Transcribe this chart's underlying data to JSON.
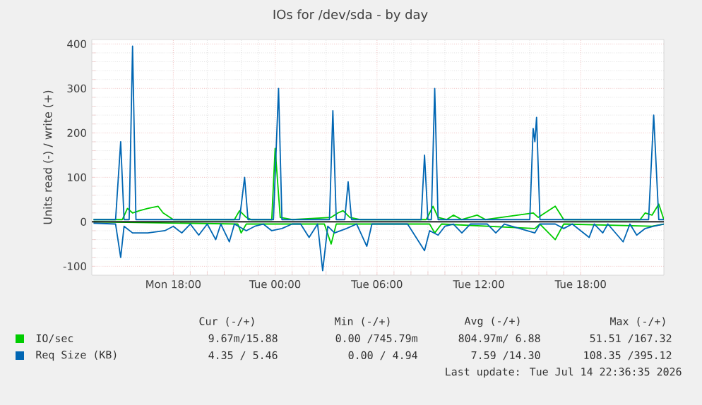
{
  "chart_data": {
    "type": "line",
    "title": "IOs for /dev/sda - by day",
    "ylabel": "Units read (-) / write (+)",
    "xlim": [
      "2026-07-13T13:12",
      "2026-07-14T22:54"
    ],
    "xticks": [
      {
        "value": "2026-07-13T18:00",
        "label": "Mon 18:00"
      },
      {
        "value": "2026-07-14T00:00",
        "label": "Tue 00:00"
      },
      {
        "value": "2026-07-14T06:00",
        "label": "Tue 06:00"
      },
      {
        "value": "2026-07-14T12:00",
        "label": "Tue 12:00"
      },
      {
        "value": "2026-07-14T18:00",
        "label": "Tue 18:00"
      }
    ],
    "ylim": [
      -120,
      410
    ],
    "yticks": [
      -100,
      0,
      100,
      200,
      300,
      400
    ],
    "grid": true,
    "legend": "bottom",
    "ref_lines": [
      {
        "axis": "y",
        "value": 0,
        "color": "#000000"
      }
    ],
    "series": [
      {
        "name": "IO/sec",
        "color": "#00cc00",
        "x": [
          "2026-07-13T13:18",
          "2026-07-13T15:00",
          "2026-07-13T15:18",
          "2026-07-13T15:36",
          "2026-07-13T16:00",
          "2026-07-13T16:30",
          "2026-07-13T17:06",
          "2026-07-13T17:24",
          "2026-07-13T18:00",
          "2026-07-13T21:36",
          "2026-07-13T21:54",
          "2026-07-13T22:18",
          "2026-07-13T22:36",
          "2026-07-13T23:48",
          "2026-07-14T00:00",
          "2026-07-14T00:18",
          "2026-07-14T01:00",
          "2026-07-14T03:18",
          "2026-07-14T03:42",
          "2026-07-14T04:00",
          "2026-07-14T04:24",
          "2026-07-14T05:00",
          "2026-07-14T08:54",
          "2026-07-14T09:18",
          "2026-07-14T09:36",
          "2026-07-14T10:06",
          "2026-07-14T10:30",
          "2026-07-14T11:00",
          "2026-07-14T11:54",
          "2026-07-14T12:24",
          "2026-07-14T15:12",
          "2026-07-14T15:30",
          "2026-07-14T16:30",
          "2026-07-14T17:00",
          "2026-07-14T21:30",
          "2026-07-14T21:48",
          "2026-07-14T22:12",
          "2026-07-14T22:36",
          "2026-07-14T22:54"
        ],
        "values": [
          5,
          5,
          30,
          20,
          25,
          30,
          35,
          20,
          5,
          5,
          25,
          10,
          5,
          5,
          165,
          10,
          5,
          10,
          20,
          25,
          10,
          5,
          5,
          35,
          10,
          5,
          15,
          5,
          15,
          5,
          20,
          10,
          35,
          5,
          5,
          20,
          15,
          40,
          5
        ]
      },
      {
        "color": "#00cc00",
        "x": [
          "2026-07-13T13:18",
          "2026-07-13T21:48",
          "2026-07-13T22:00",
          "2026-07-13T22:18",
          "2026-07-14T02:54",
          "2026-07-14T03:18",
          "2026-07-14T03:36",
          "2026-07-14T09:06",
          "2026-07-14T09:24",
          "2026-07-14T09:48",
          "2026-07-14T15:18",
          "2026-07-14T15:36",
          "2026-07-14T16:30",
          "2026-07-14T17:00",
          "2026-07-14T22:12",
          "2026-07-14T22:54"
        ],
        "values": [
          0,
          -5,
          -25,
          -5,
          -5,
          -50,
          -5,
          -5,
          -25,
          -5,
          -15,
          -5,
          -40,
          -5,
          -10,
          -5
        ]
      },
      {
        "name": "Req Size (KB)",
        "color": "#0066b3",
        "x": [
          "2026-07-13T13:18",
          "2026-07-13T14:36",
          "2026-07-13T14:54",
          "2026-07-13T15:06",
          "2026-07-13T15:24",
          "2026-07-13T15:36",
          "2026-07-13T15:48",
          "2026-07-13T17:00",
          "2026-07-13T20:00",
          "2026-07-13T21:54",
          "2026-07-13T22:12",
          "2026-07-13T22:24",
          "2026-07-13T23:54",
          "2026-07-14T00:12",
          "2026-07-14T00:24",
          "2026-07-14T03:12",
          "2026-07-14T03:24",
          "2026-07-14T03:36",
          "2026-07-14T04:06",
          "2026-07-14T04:18",
          "2026-07-14T04:30",
          "2026-07-14T08:36",
          "2026-07-14T08:48",
          "2026-07-14T09:00",
          "2026-07-14T09:12",
          "2026-07-14T09:24",
          "2026-07-14T09:36",
          "2026-07-14T15:00",
          "2026-07-14T15:12",
          "2026-07-14T15:18",
          "2026-07-14T15:24",
          "2026-07-14T15:36",
          "2026-07-14T22:00",
          "2026-07-14T22:18",
          "2026-07-14T22:36",
          "2026-07-14T22:54"
        ],
        "values": [
          5,
          5,
          180,
          5,
          5,
          395,
          5,
          5,
          5,
          5,
          100,
          5,
          5,
          300,
          5,
          5,
          250,
          5,
          5,
          90,
          5,
          5,
          150,
          5,
          5,
          300,
          5,
          5,
          210,
          180,
          235,
          5,
          5,
          240,
          5,
          5
        ]
      },
      {
        "color": "#0066b3",
        "x": [
          "2026-07-13T13:18",
          "2026-07-13T14:36",
          "2026-07-13T14:54",
          "2026-07-13T15:06",
          "2026-07-13T15:36",
          "2026-07-13T16:30",
          "2026-07-13T17:30",
          "2026-07-13T18:00",
          "2026-07-13T18:30",
          "2026-07-13T19:00",
          "2026-07-13T19:30",
          "2026-07-13T20:00",
          "2026-07-13T20:30",
          "2026-07-13T20:48",
          "2026-07-13T21:18",
          "2026-07-13T21:36",
          "2026-07-13T22:18",
          "2026-07-13T22:48",
          "2026-07-13T23:18",
          "2026-07-13T23:48",
          "2026-07-14T00:24",
          "2026-07-14T01:00",
          "2026-07-14T01:30",
          "2026-07-14T02:00",
          "2026-07-14T02:30",
          "2026-07-14T02:48",
          "2026-07-14T03:06",
          "2026-07-14T03:30",
          "2026-07-14T04:12",
          "2026-07-14T04:48",
          "2026-07-14T05:24",
          "2026-07-14T05:42",
          "2026-07-14T06:30",
          "2026-07-14T07:48",
          "2026-07-14T08:48",
          "2026-07-14T09:06",
          "2026-07-14T09:36",
          "2026-07-14T10:00",
          "2026-07-14T10:30",
          "2026-07-14T11:00",
          "2026-07-14T11:30",
          "2026-07-14T12:30",
          "2026-07-14T13:00",
          "2026-07-14T13:30",
          "2026-07-14T15:18",
          "2026-07-14T15:36",
          "2026-07-14T16:30",
          "2026-07-14T17:00",
          "2026-07-14T17:30",
          "2026-07-14T18:30",
          "2026-07-14T18:48",
          "2026-07-14T19:18",
          "2026-07-14T19:36",
          "2026-07-14T20:30",
          "2026-07-14T20:54",
          "2026-07-14T21:18",
          "2026-07-14T21:48",
          "2026-07-14T22:18",
          "2026-07-14T22:54"
        ],
        "values": [
          -3,
          -5,
          -80,
          -10,
          -25,
          -25,
          -20,
          -10,
          -25,
          -5,
          -30,
          -5,
          -40,
          -5,
          -45,
          -5,
          -20,
          -10,
          -5,
          -20,
          -15,
          -5,
          -5,
          -35,
          -5,
          -110,
          -10,
          -25,
          -15,
          -5,
          -55,
          -5,
          -5,
          -5,
          -65,
          -20,
          -30,
          -10,
          -5,
          -25,
          -5,
          -5,
          -25,
          -5,
          -25,
          -5,
          -5,
          -15,
          -5,
          -35,
          -5,
          -25,
          -5,
          -45,
          -5,
          -30,
          -15,
          -10,
          -5
        ]
      }
    ],
    "annotations": [
      "Cur (-/+)",
      "Min (-/+)",
      "Avg (-/+)",
      "Max (-/+)",
      "9.67m/15.88",
      "0.00 /745.79m",
      "804.97m/ 6.88",
      "51.51 /167.32",
      "4.35 / 5.46",
      "0.00 / 4.94",
      "7.59 /14.30",
      "108.35 /395.12",
      "Last update: Tue Jul 14 22:36:35 2026"
    ]
  }
}
